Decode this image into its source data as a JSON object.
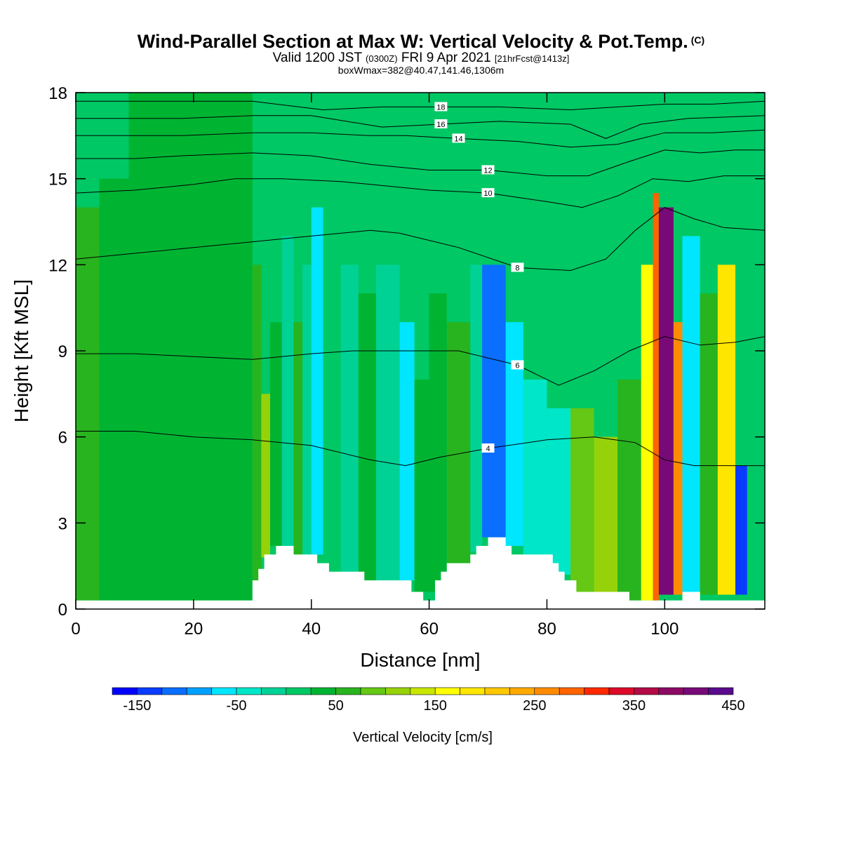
{
  "header": {
    "title": "Wind-Parallel Section at Max W: Vertical Velocity & Pot.Temp.",
    "title_mark": "(C)",
    "valid_prefix": "Valid 1200 JST",
    "valid_utc": "(0300Z)",
    "valid_date": "FRI 9 Apr 2021",
    "forecast": "[21hrFcst@1413z]",
    "box_info": "boxWmax=382@40.47,141.46,1306m"
  },
  "chart_data": {
    "type": "heatmap",
    "xlabel": "Distance [nm]",
    "ylabel": "Height [Kft MSL]",
    "xlim": [
      0,
      117
    ],
    "ylim": [
      0,
      18
    ],
    "x_ticks": [
      0,
      20,
      40,
      60,
      80,
      100
    ],
    "y_ticks": [
      0,
      3,
      6,
      9,
      12,
      15,
      18
    ],
    "colorbar": {
      "title": "Vertical Velocity [cm/s]",
      "min": -175,
      "step": 25,
      "labels": [
        "-150",
        "-50",
        "50",
        "150",
        "250",
        "350",
        "450"
      ],
      "label_values": [
        -150,
        -50,
        50,
        150,
        250,
        350,
        450
      ],
      "colors": [
        "#0000ff",
        "#0a3cff",
        "#0a6eff",
        "#00a0ff",
        "#00e6ff",
        "#00e6c8",
        "#00d296",
        "#00c864",
        "#00b432",
        "#28b41e",
        "#64c814",
        "#96d20a",
        "#c8e600",
        "#ffff00",
        "#ffe600",
        "#ffc800",
        "#ffaa00",
        "#ff8c00",
        "#ff6400",
        "#ff2800",
        "#dc0a28",
        "#b40a46",
        "#8c0a64",
        "#780a78",
        "#5a0a8c"
      ]
    },
    "velocity_cells": [
      {
        "x": [
          0,
          4
        ],
        "y": [
          0.3,
          14.0
        ],
        "w": 50
      },
      {
        "x": [
          4,
          9
        ],
        "y": [
          0.3,
          15.0
        ],
        "w": 45
      },
      {
        "x": [
          9,
          14
        ],
        "y": [
          0.3,
          18.0
        ],
        "w": 25
      },
      {
        "x": [
          14,
          20
        ],
        "y": [
          0.3,
          18.0
        ],
        "w": 25
      },
      {
        "x": [
          20,
          26
        ],
        "y": [
          0.3,
          18.0
        ],
        "w": 40
      },
      {
        "x": [
          26,
          30
        ],
        "y": [
          0.3,
          18.0
        ],
        "w": 30
      },
      {
        "x": [
          30,
          31.5
        ],
        "y": [
          0.8,
          12.0
        ],
        "w": 60
      },
      {
        "x": [
          31.5,
          33
        ],
        "y": [
          1.8,
          7.5
        ],
        "w": 120
      },
      {
        "x": [
          33,
          35
        ],
        "y": [
          2.2,
          10.0
        ],
        "w": 40
      },
      {
        "x": [
          35,
          37
        ],
        "y": [
          2.2,
          13.0
        ],
        "w": -20
      },
      {
        "x": [
          37,
          38.5
        ],
        "y": [
          1.9,
          10.0
        ],
        "w": 60
      },
      {
        "x": [
          38.5,
          40
        ],
        "y": [
          1.9,
          12.0
        ],
        "w": -10
      },
      {
        "x": [
          40,
          42
        ],
        "y": [
          1.9,
          14.0
        ],
        "w": -70
      },
      {
        "x": [
          42,
          45
        ],
        "y": [
          1.6,
          13.0
        ],
        "w": 20
      },
      {
        "x": [
          45,
          48
        ],
        "y": [
          1.3,
          12.0
        ],
        "w": -20
      },
      {
        "x": [
          48,
          51
        ],
        "y": [
          1.0,
          11.0
        ],
        "w": 40
      },
      {
        "x": [
          51,
          55
        ],
        "y": [
          1.0,
          12.0
        ],
        "w": -10
      },
      {
        "x": [
          55,
          57.5
        ],
        "y": [
          1.0,
          10.0
        ],
        "w": -60
      },
      {
        "x": [
          57.5,
          60
        ],
        "y": [
          0.6,
          8.0
        ],
        "w": 30
      },
      {
        "x": [
          60,
          63
        ],
        "y": [
          0.6,
          11.0
        ],
        "w": 40
      },
      {
        "x": [
          63,
          67
        ],
        "y": [
          1.4,
          10.0
        ],
        "w": 70
      },
      {
        "x": [
          67,
          69
        ],
        "y": [
          2.0,
          12.0
        ],
        "w": -20
      },
      {
        "x": [
          69,
          73
        ],
        "y": [
          2.5,
          12.0
        ],
        "w": -120
      },
      {
        "x": [
          73,
          76
        ],
        "y": [
          2.2,
          10.0
        ],
        "w": -60
      },
      {
        "x": [
          76,
          80
        ],
        "y": [
          1.9,
          8.0
        ],
        "w": -40
      },
      {
        "x": [
          80,
          84
        ],
        "y": [
          1.2,
          7.0
        ],
        "w": -30
      },
      {
        "x": [
          84,
          88
        ],
        "y": [
          0.5,
          7.0
        ],
        "w": 80
      },
      {
        "x": [
          88,
          92
        ],
        "y": [
          0.5,
          6.0
        ],
        "w": 110
      },
      {
        "x": [
          92,
          96
        ],
        "y": [
          0.3,
          8.0
        ],
        "w": 70
      },
      {
        "x": [
          96,
          98
        ],
        "y": [
          0.3,
          12.0
        ],
        "w": 150
      },
      {
        "x": [
          98,
          99
        ],
        "y": [
          0.3,
          14.5
        ],
        "w": 280
      },
      {
        "x": [
          99,
          101.5
        ],
        "y": [
          0.5,
          14.0
        ],
        "w": 400
      },
      {
        "x": [
          101.5,
          103
        ],
        "y": [
          0.5,
          10.0
        ],
        "w": 250
      },
      {
        "x": [
          103,
          106
        ],
        "y": [
          0.5,
          13.0
        ],
        "w": -60
      },
      {
        "x": [
          106,
          109
        ],
        "y": [
          0.5,
          11.0
        ],
        "w": 60
      },
      {
        "x": [
          109,
          112
        ],
        "y": [
          0.5,
          12.0
        ],
        "w": 190
      },
      {
        "x": [
          112,
          114
        ],
        "y": [
          0.5,
          5.0
        ],
        "w": -150
      },
      {
        "x": [
          114,
          117
        ],
        "y": [
          0.5,
          13.0
        ],
        "w": 20
      }
    ],
    "terrain": [
      [
        0,
        0.3
      ],
      [
        30,
        0.3
      ],
      [
        30,
        1.0
      ],
      [
        31,
        1.0
      ],
      [
        31,
        1.4
      ],
      [
        32,
        1.4
      ],
      [
        32,
        1.9
      ],
      [
        34,
        1.9
      ],
      [
        34,
        2.2
      ],
      [
        37,
        2.2
      ],
      [
        37,
        1.9
      ],
      [
        41,
        1.9
      ],
      [
        41,
        1.6
      ],
      [
        43,
        1.6
      ],
      [
        43,
        1.3
      ],
      [
        49,
        1.3
      ],
      [
        49,
        1.0
      ],
      [
        57,
        1.0
      ],
      [
        57,
        0.6
      ],
      [
        59,
        0.6
      ],
      [
        59,
        0.3
      ],
      [
        61,
        0.3
      ],
      [
        61,
        1.0
      ],
      [
        62,
        1.0
      ],
      [
        62,
        1.3
      ],
      [
        63,
        1.3
      ],
      [
        63,
        1.6
      ],
      [
        67,
        1.6
      ],
      [
        67,
        1.9
      ],
      [
        68,
        1.9
      ],
      [
        68,
        2.2
      ],
      [
        70,
        2.2
      ],
      [
        70,
        2.5
      ],
      [
        73,
        2.5
      ],
      [
        73,
        2.2
      ],
      [
        74,
        2.2
      ],
      [
        74,
        1.9
      ],
      [
        81,
        1.9
      ],
      [
        81,
        1.6
      ],
      [
        82,
        1.6
      ],
      [
        82,
        1.3
      ],
      [
        83,
        1.3
      ],
      [
        83,
        1.0
      ],
      [
        85,
        1.0
      ],
      [
        85,
        0.6
      ],
      [
        94,
        0.6
      ],
      [
        94,
        0.3
      ],
      [
        103,
        0.3
      ],
      [
        103,
        0.6
      ],
      [
        106,
        0.6
      ],
      [
        106,
        0.3
      ],
      [
        117,
        0.3
      ],
      [
        117,
        0
      ],
      [
        0,
        0
      ]
    ],
    "theta_contours": [
      {
        "label": "4",
        "points": [
          [
            0,
            6.2
          ],
          [
            10,
            6.2
          ],
          [
            20,
            6.0
          ],
          [
            30,
            5.9
          ],
          [
            40,
            5.7
          ],
          [
            50,
            5.2
          ],
          [
            56,
            5.0
          ],
          [
            62,
            5.3
          ],
          [
            70,
            5.6
          ],
          [
            80,
            5.9
          ],
          [
            88,
            6.0
          ],
          [
            95,
            5.8
          ],
          [
            100,
            5.2
          ],
          [
            105,
            5.0
          ],
          [
            110,
            5.0
          ],
          [
            117,
            5.0
          ]
        ]
      },
      {
        "label": "6",
        "points": [
          [
            0,
            8.9
          ],
          [
            10,
            8.9
          ],
          [
            20,
            8.8
          ],
          [
            30,
            8.7
          ],
          [
            40,
            8.9
          ],
          [
            47,
            9.0
          ],
          [
            55,
            9.0
          ],
          [
            65,
            9.0
          ],
          [
            75,
            8.5
          ],
          [
            82,
            7.8
          ],
          [
            88,
            8.3
          ],
          [
            94,
            9.0
          ],
          [
            100,
            9.5
          ],
          [
            106,
            9.2
          ],
          [
            112,
            9.3
          ],
          [
            117,
            9.5
          ]
        ]
      },
      {
        "label": "8",
        "points": [
          [
            0,
            12.2
          ],
          [
            10,
            12.4
          ],
          [
            20,
            12.6
          ],
          [
            30,
            12.8
          ],
          [
            40,
            13.0
          ],
          [
            50,
            13.2
          ],
          [
            55,
            13.1
          ],
          [
            65,
            12.6
          ],
          [
            75,
            11.9
          ],
          [
            84,
            11.8
          ],
          [
            90,
            12.2
          ],
          [
            95,
            13.2
          ],
          [
            100,
            14.0
          ],
          [
            105,
            13.6
          ],
          [
            110,
            13.3
          ],
          [
            117,
            13.2
          ]
        ]
      },
      {
        "label": "10",
        "points": [
          [
            0,
            14.5
          ],
          [
            10,
            14.6
          ],
          [
            20,
            14.8
          ],
          [
            27,
            15.0
          ],
          [
            35,
            15.0
          ],
          [
            45,
            14.9
          ],
          [
            50,
            14.8
          ],
          [
            60,
            14.6
          ],
          [
            70,
            14.5
          ],
          [
            80,
            14.2
          ],
          [
            86,
            14.0
          ],
          [
            92,
            14.4
          ],
          [
            98,
            15.0
          ],
          [
            104,
            14.9
          ],
          [
            110,
            15.1
          ],
          [
            117,
            15.1
          ]
        ]
      },
      {
        "label": "12",
        "points": [
          [
            0,
            15.7
          ],
          [
            10,
            15.7
          ],
          [
            18,
            15.8
          ],
          [
            30,
            15.9
          ],
          [
            40,
            15.8
          ],
          [
            50,
            15.5
          ],
          [
            60,
            15.3
          ],
          [
            70,
            15.3
          ],
          [
            80,
            15.1
          ],
          [
            87,
            15.1
          ],
          [
            94,
            15.6
          ],
          [
            100,
            16.0
          ],
          [
            106,
            15.9
          ],
          [
            112,
            16.0
          ],
          [
            117,
            16.0
          ]
        ]
      },
      {
        "label": "14",
        "points": [
          [
            0,
            16.5
          ],
          [
            10,
            16.5
          ],
          [
            18,
            16.5
          ],
          [
            30,
            16.6
          ],
          [
            40,
            16.6
          ],
          [
            50,
            16.5
          ],
          [
            56,
            16.5
          ],
          [
            65,
            16.4
          ],
          [
            75,
            16.3
          ],
          [
            84,
            16.1
          ],
          [
            92,
            16.2
          ],
          [
            100,
            16.6
          ],
          [
            108,
            16.6
          ],
          [
            117,
            16.7
          ]
        ]
      },
      {
        "label": "16",
        "points": [
          [
            0,
            17.1
          ],
          [
            10,
            17.1
          ],
          [
            18,
            17.1
          ],
          [
            30,
            17.2
          ],
          [
            40,
            17.2
          ],
          [
            52,
            16.8
          ],
          [
            62,
            16.9
          ],
          [
            72,
            17.0
          ],
          [
            84,
            16.9
          ],
          [
            90,
            16.4
          ],
          [
            96,
            16.9
          ],
          [
            104,
            17.1
          ],
          [
            117,
            17.2
          ]
        ]
      },
      {
        "label": "18",
        "points": [
          [
            0,
            17.7
          ],
          [
            10,
            17.7
          ],
          [
            20,
            17.7
          ],
          [
            30,
            17.7
          ],
          [
            42,
            17.4
          ],
          [
            52,
            17.5
          ],
          [
            62,
            17.5
          ],
          [
            72,
            17.5
          ],
          [
            84,
            17.4
          ],
          [
            92,
            17.5
          ],
          [
            100,
            17.6
          ],
          [
            108,
            17.6
          ],
          [
            117,
            17.7
          ]
        ]
      }
    ]
  }
}
